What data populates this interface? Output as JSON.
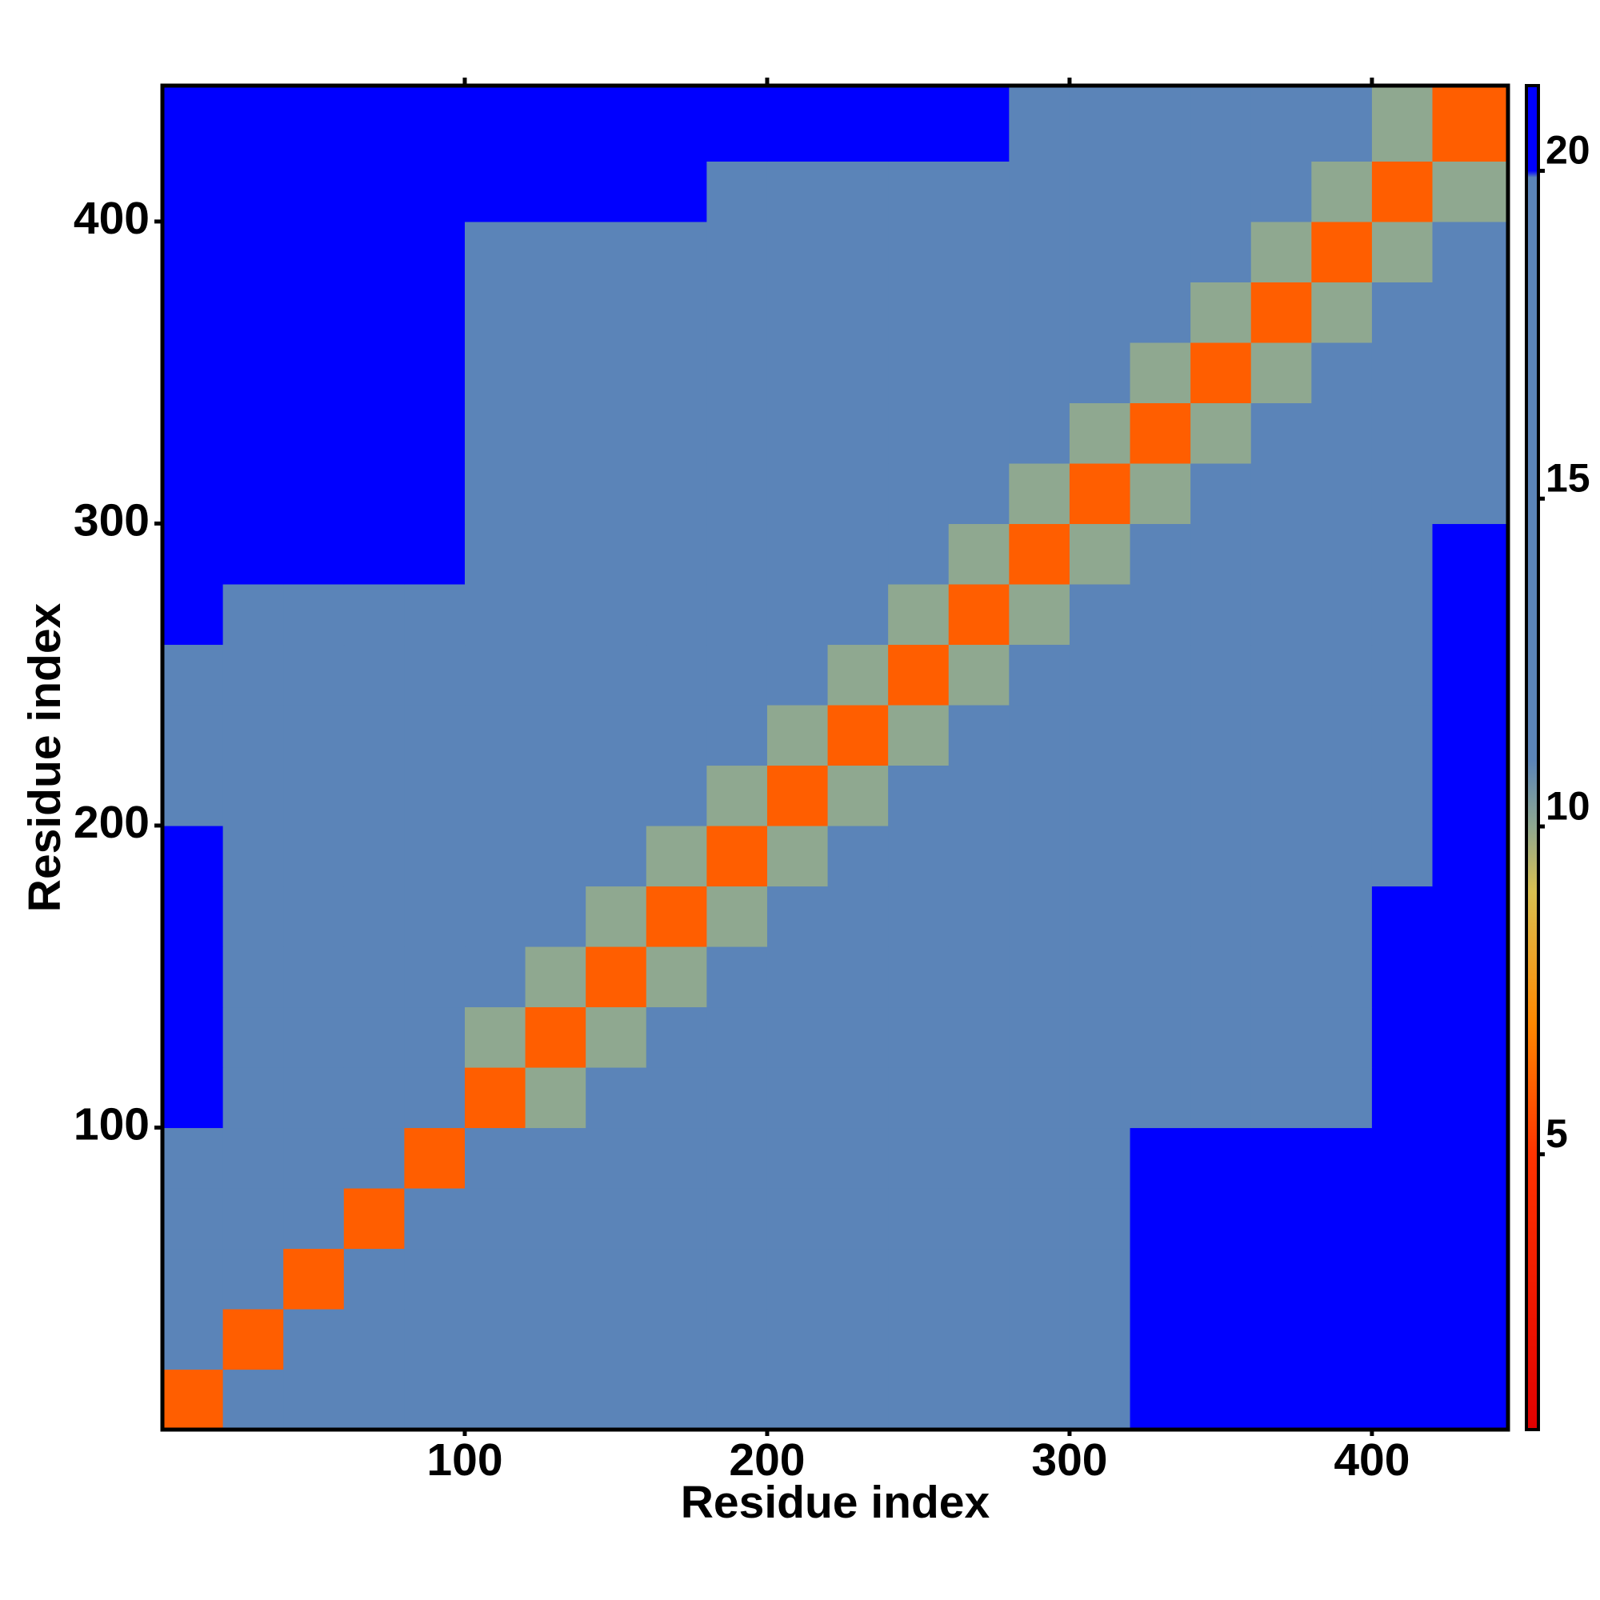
{
  "chart_data": {
    "type": "heatmap",
    "x_label": "Residue index",
    "y_label": "Residue index",
    "xlim": [
      0,
      445
    ],
    "ylim": [
      0,
      445
    ],
    "xticks": [
      100,
      200,
      300,
      400
    ],
    "yticks": [
      100,
      200,
      300,
      400
    ],
    "bins": [
      0,
      20,
      40,
      60,
      80,
      100,
      120,
      140,
      160,
      180,
      200,
      220,
      240,
      260,
      280,
      300,
      320,
      340,
      360,
      380,
      400,
      420,
      445
    ],
    "values": [
      [
        6,
        11,
        13,
        13,
        13,
        19.5,
        19.5,
        19.5,
        19.5,
        19.5,
        19.5,
        19.5,
        19.5,
        19.5,
        19.5,
        19.5,
        23,
        23,
        23,
        23,
        23,
        23
      ],
      [
        11,
        6,
        11,
        13,
        13,
        19.5,
        19.5,
        19.5,
        19.5,
        19.5,
        19.5,
        19.5,
        19.5,
        19.5,
        19.5,
        19.5,
        23,
        23,
        23,
        23,
        23,
        23
      ],
      [
        13,
        11,
        6,
        11,
        13,
        19.5,
        19.5,
        19.5,
        19.5,
        19.5,
        19.5,
        19.5,
        19.5,
        19.5,
        19.5,
        19.5,
        23,
        23,
        23,
        23,
        23,
        23
      ],
      [
        13,
        13,
        11,
        6,
        11,
        19.5,
        19.5,
        19.5,
        19.5,
        19.5,
        19.5,
        19.5,
        19.5,
        19.5,
        19.5,
        19.5,
        23,
        23,
        23,
        23,
        23,
        23
      ],
      [
        13,
        13,
        13,
        11,
        6,
        19.5,
        19.5,
        19.5,
        19.5,
        19.5,
        19.5,
        19.5,
        19.5,
        19.5,
        19.5,
        19.5,
        23,
        23,
        23,
        23,
        23,
        23
      ],
      [
        22,
        19.5,
        19.5,
        19.5,
        19.5,
        6,
        10,
        13,
        16,
        16,
        16,
        16,
        16,
        16,
        16,
        16,
        16,
        16,
        16,
        16,
        21,
        22
      ],
      [
        22,
        19.5,
        19.5,
        19.5,
        19.5,
        10,
        6,
        10,
        13,
        16,
        16,
        16,
        16,
        16,
        16,
        16,
        16,
        16,
        16,
        16,
        21,
        22
      ],
      [
        22,
        19.5,
        19.5,
        19.5,
        19.5,
        13,
        10,
        6,
        10,
        13,
        16,
        16,
        16,
        16,
        16,
        16,
        16,
        16,
        16,
        16,
        21,
        22
      ],
      [
        22,
        19.5,
        19.5,
        19.5,
        19.5,
        16,
        13,
        10,
        6,
        10,
        13,
        16,
        16,
        16,
        16,
        16,
        16,
        16,
        16,
        16,
        21,
        22
      ],
      [
        22,
        19.5,
        19.5,
        19.5,
        19.5,
        16,
        16,
        13,
        10,
        6,
        10,
        13,
        16,
        16,
        16,
        16,
        16,
        16,
        16,
        16,
        16,
        22
      ],
      [
        19.5,
        19.5,
        19.5,
        19.5,
        19.5,
        16,
        16,
        16,
        13,
        10,
        6,
        10,
        13,
        16,
        16,
        16,
        16,
        16,
        16,
        16,
        16,
        22
      ],
      [
        19.5,
        19.5,
        19.5,
        19.5,
        19.5,
        16,
        16,
        16,
        16,
        13,
        10,
        6,
        10,
        13,
        16,
        16,
        16,
        16,
        16,
        16,
        16,
        22
      ],
      [
        19.5,
        19.5,
        19.5,
        19.5,
        19.5,
        16,
        16,
        16,
        16,
        16,
        13,
        10,
        6,
        10,
        13,
        16,
        16,
        16,
        16,
        16,
        16,
        22
      ],
      [
        22,
        19.5,
        19.5,
        19.5,
        19.5,
        16,
        16,
        16,
        16,
        16,
        16,
        13,
        10,
        6,
        10,
        13,
        16,
        16,
        16,
        16,
        16,
        22
      ],
      [
        22,
        20.5,
        20.5,
        20.5,
        20.5,
        16,
        16,
        16,
        16,
        16,
        16,
        16,
        13,
        10,
        6,
        10,
        13,
        16,
        16,
        16,
        16,
        22
      ],
      [
        22,
        20.5,
        20.5,
        20.5,
        20.5,
        16,
        16,
        16,
        16,
        16,
        16,
        16,
        16,
        13,
        10,
        6,
        10,
        13,
        16,
        16,
        16,
        16
      ],
      [
        22,
        20.5,
        20.5,
        20.5,
        20.5,
        16,
        16,
        16,
        16,
        16,
        16,
        16,
        16,
        16,
        13,
        10,
        6,
        10,
        13,
        16,
        16,
        16
      ],
      [
        22,
        23,
        23,
        23,
        23,
        16,
        16,
        16,
        16,
        16,
        16,
        16,
        16,
        16,
        16,
        13,
        10,
        6,
        10,
        13,
        16,
        16
      ],
      [
        22,
        23,
        23,
        23,
        23,
        16,
        16,
        16,
        16,
        16,
        16,
        16,
        16,
        16,
        16,
        16,
        13,
        10,
        6,
        10,
        13,
        16
      ],
      [
        22,
        23,
        23,
        23,
        23,
        16,
        16,
        16,
        16,
        16,
        16,
        16,
        16,
        16,
        16,
        16,
        16,
        13,
        10,
        6,
        10,
        13
      ],
      [
        22,
        23,
        23,
        23,
        23,
        21,
        21,
        21,
        21,
        16,
        16,
        16,
        16,
        16,
        16,
        16,
        16,
        16,
        13,
        10,
        6,
        10
      ],
      [
        22,
        23,
        23,
        23,
        23,
        22,
        22,
        22,
        22,
        22,
        22,
        22,
        22,
        22,
        16,
        16,
        16,
        16,
        16,
        13,
        10,
        6
      ]
    ],
    "zlim": [
      0.8,
      21.3
    ],
    "zticks": [
      5,
      10,
      15,
      20
    ],
    "colorscale": [
      {
        "value": 0.8,
        "color": "#e00000"
      },
      {
        "value": 5,
        "color": "#ff3300"
      },
      {
        "value": 7,
        "color": "#ff8800"
      },
      {
        "value": 9,
        "color": "#d9c050"
      },
      {
        "value": 10,
        "color": "#8fa890"
      },
      {
        "value": 11,
        "color": "#5b84b8"
      },
      {
        "value": 19.9,
        "color": "#5b84b8"
      },
      {
        "value": 20,
        "color": "#0000ff"
      },
      {
        "value": 21.3,
        "color": "#0000ff"
      }
    ]
  }
}
